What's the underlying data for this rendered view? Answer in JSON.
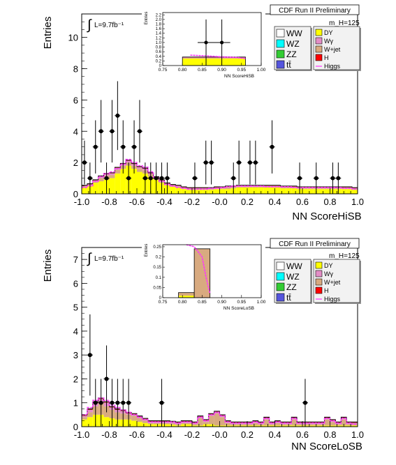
{
  "chart_data": [
    {
      "type": "bar",
      "title": "CDF Run II Preliminary",
      "mass_label": "m_H=125",
      "lumi_label": "L=9.7fb⁻¹",
      "xlabel": "NN ScoreHiSB",
      "ylabel": "Entries",
      "xlim": [
        -1.0,
        1.0
      ],
      "ylim": [
        0,
        11.5
      ],
      "xticks": [
        "-1.0",
        "-0.8",
        "-0.6",
        "-0.4",
        "-0.2",
        "-0.0",
        "0.2",
        "0.4",
        "0.6",
        "0.8",
        "1.0"
      ],
      "yticks": [
        "0",
        "2",
        "4",
        "6",
        "8",
        "10"
      ],
      "legend_left": [
        "WW",
        "WZ",
        "ZZ",
        "tt̄"
      ],
      "legend_right": [
        "DY",
        "Wγ",
        "W+jet",
        "H",
        "Higgs"
      ],
      "bin_edges_from": -1.0,
      "bin_width": 0.04,
      "series": [
        {
          "name": "DY",
          "values": [
            0.4,
            0.5,
            0.7,
            0.8,
            0.9,
            1.0,
            1.3,
            1.6,
            1.8,
            1.6,
            1.4,
            1.3,
            1.1,
            0.9,
            0.7,
            0.55,
            0.45,
            0.4,
            0.3,
            0.25,
            0.25,
            0.25,
            0.25,
            0.25,
            0.3,
            0.3,
            0.3,
            0.35,
            0.4,
            0.4,
            0.4,
            0.4,
            0.4,
            0.4,
            0.4,
            0.4,
            0.35,
            0.35,
            0.35,
            0.3,
            0.3,
            0.3,
            0.3,
            0.3,
            0.3,
            0.3,
            0.3,
            0.3,
            0.3,
            0.25
          ]
        },
        {
          "name": "W+jet",
          "values": [
            0.05,
            0.05,
            0.1,
            0.2,
            0.25,
            0.2,
            0.25,
            0.2,
            0.2,
            0.2,
            0.2,
            0.2,
            0.15,
            0.1,
            0.1,
            0.05,
            0.05,
            0.05,
            0.05,
            0.05,
            0.05,
            0.05,
            0.05,
            0.05,
            0.05,
            0.05,
            0.1,
            0.05,
            0.05,
            0.05,
            0.05,
            0.05,
            0.05,
            0.05,
            0.05,
            0.05,
            0.05,
            0.05,
            0.05,
            0.05,
            0.05,
            0.05,
            0.05,
            0.05,
            0.05,
            0.05,
            0.05,
            0.05,
            0.05,
            0.05
          ]
        },
        {
          "name": "Wγ",
          "values": [
            0.05,
            0.05,
            0.05,
            0.1,
            0.1,
            0.1,
            0.1,
            0.1,
            0.1,
            0.1,
            0.1,
            0.1,
            0.05,
            0.05,
            0.05,
            0.05,
            0.05,
            0.05,
            0.05,
            0.05,
            0.05,
            0.05,
            0.05,
            0.05,
            0.05,
            0.05,
            0.05,
            0.05,
            0.05,
            0.05,
            0.05,
            0.05,
            0.05,
            0.05,
            0.05,
            0.05,
            0.05,
            0.05,
            0.05,
            0.05,
            0.05,
            0.05,
            0.05,
            0.05,
            0.05,
            0.05,
            0.05,
            0.05,
            0.05,
            0.05
          ]
        },
        {
          "name": "WW",
          "values": [
            0.05,
            0.05,
            0.05,
            0.05,
            0.05,
            0.05,
            0.05,
            0.05,
            0.05,
            0.05,
            0.05,
            0.05,
            0.05,
            0.05,
            0.05,
            0.05,
            0.05,
            0.05,
            0.05,
            0.05,
            0.05,
            0.05,
            0.05,
            0.05,
            0.05,
            0.05,
            0.05,
            0.05,
            0.05,
            0.05,
            0.05,
            0.05,
            0.05,
            0.05,
            0.05,
            0.05,
            0.05,
            0.05,
            0.05,
            0.05,
            0.05,
            0.05,
            0.05,
            0.05,
            0.05,
            0.05,
            0.05,
            0.05,
            0.05,
            0.05
          ]
        }
      ],
      "points": [
        {
          "x": -0.98,
          "y": 2,
          "err": 1.4
        },
        {
          "x": -0.94,
          "y": 1,
          "err": 1.0
        },
        {
          "x": -0.9,
          "y": 3,
          "err": 1.7
        },
        {
          "x": -0.86,
          "y": 4,
          "err": 2.0
        },
        {
          "x": -0.82,
          "y": 1,
          "err": 1.0
        },
        {
          "x": -0.78,
          "y": 4,
          "err": 2.0
        },
        {
          "x": -0.74,
          "y": 5,
          "err": 2.2
        },
        {
          "x": -0.7,
          "y": 3,
          "err": 1.7
        },
        {
          "x": -0.66,
          "y": 1,
          "err": 1.0
        },
        {
          "x": -0.62,
          "y": 3,
          "err": 1.7
        },
        {
          "x": -0.58,
          "y": 4,
          "err": 2.0
        },
        {
          "x": -0.54,
          "y": 1,
          "err": 1.0
        },
        {
          "x": -0.5,
          "y": 1,
          "err": 1.0
        },
        {
          "x": -0.46,
          "y": 1,
          "err": 1.0
        },
        {
          "x": -0.42,
          "y": 1,
          "err": 1.0
        },
        {
          "x": -0.38,
          "y": 1,
          "err": 1.0
        },
        {
          "x": -0.18,
          "y": 1,
          "err": 1.0
        },
        {
          "x": -0.1,
          "y": 2,
          "err": 1.4
        },
        {
          "x": -0.06,
          "y": 2,
          "err": 1.4
        },
        {
          "x": 0.1,
          "y": 1,
          "err": 1.0
        },
        {
          "x": 0.14,
          "y": 2,
          "err": 1.4
        },
        {
          "x": 0.22,
          "y": 2,
          "err": 1.4
        },
        {
          "x": 0.26,
          "y": 2,
          "err": 1.4
        },
        {
          "x": 0.38,
          "y": 3,
          "err": 1.7
        },
        {
          "x": 0.58,
          "y": 1,
          "err": 1.0
        },
        {
          "x": 0.7,
          "y": 1,
          "err": 1.0
        },
        {
          "x": 0.82,
          "y": 1,
          "err": 1.0
        },
        {
          "x": 0.86,
          "y": 1,
          "err": 1.0
        }
      ],
      "higgs": [
        0.4,
        0.5,
        0.8,
        1.1,
        1.3,
        1.4,
        1.6,
        1.9,
        2.2,
        2.0,
        1.8,
        1.7,
        1.4,
        1.0,
        0.8,
        0.6,
        0.5,
        0.4,
        0.35,
        0.3,
        0.3,
        0.3,
        0.3,
        0.35,
        0.35,
        0.4,
        0.45,
        0.5,
        0.5,
        0.5,
        0.5,
        0.5,
        0.5,
        0.45,
        0.45,
        0.45,
        0.45,
        0.45,
        0.4,
        0.4,
        0.4,
        0.4,
        0.4,
        0.4,
        0.4,
        0.4,
        0.4,
        0.35,
        0.35,
        0.3
      ],
      "inset": {
        "xlabel": "NN ScoreHiSB",
        "ylabel": "Entries",
        "xlim": [
          0.75,
          1.0
        ],
        "ylim": [
          0,
          2.3
        ],
        "xticks": [
          "0.75",
          "0.80",
          "0.85",
          "0.90",
          "0.95",
          "1.00"
        ],
        "yticks": [
          "0",
          "0.2",
          "0.4",
          "0.6",
          "0.8",
          "1.0",
          "1.2",
          "1.4",
          "1.6",
          "1.8",
          "2.0",
          "2.2"
        ],
        "bins": [
          {
            "x0": 0.8,
            "x1": 0.96,
            "dy": 0.3,
            "wjet": 0.03,
            "wg": 0.02,
            "ww": 0.02
          }
        ],
        "points": [
          {
            "x": 0.86,
            "y": 1,
            "err": 1.0
          },
          {
            "x": 0.9,
            "y": 1,
            "err": 1.0
          }
        ],
        "higgs": [
          [
            0.82,
            0.45
          ],
          [
            0.86,
            0.42
          ],
          [
            0.9,
            0.38
          ],
          [
            0.94,
            0.35
          ],
          [
            0.96,
            0.3
          ]
        ]
      }
    },
    {
      "type": "bar",
      "title": "CDF Run II Preliminary",
      "mass_label": "m_H=125",
      "lumi_label": "L=9.7fb⁻¹",
      "xlabel": "NN ScoreLoSB",
      "ylabel": "Entries",
      "xlim": [
        -1.0,
        1.0
      ],
      "ylim": [
        0,
        7.5
      ],
      "xticks": [
        "-1.0",
        "-0.8",
        "-0.6",
        "-0.4",
        "-0.2",
        "-0.0",
        "0.2",
        "0.4",
        "0.6",
        "0.8",
        "1.0"
      ],
      "yticks": [
        "0",
        "1",
        "2",
        "3",
        "4",
        "5",
        "6",
        "7"
      ],
      "legend_left": [
        "WW",
        "WZ",
        "ZZ",
        "tt̄"
      ],
      "legend_right": [
        "DY",
        "Wγ",
        "W+jet",
        "H",
        "Higgs"
      ],
      "bin_edges_from": -1.0,
      "bin_width": 0.04,
      "series": [
        {
          "name": "DY",
          "values": [
            0.3,
            0.4,
            0.5,
            0.5,
            0.4,
            0.35,
            0.3,
            0.3,
            0.3,
            0.25,
            0.2,
            0.15,
            0.1,
            0.1,
            0.1,
            0.1,
            0.08,
            0.05,
            0.1,
            0.1,
            0.05,
            0.05,
            0.1,
            0.1,
            0.05,
            0.05,
            0.05,
            0.05,
            0.05,
            0.05,
            0.05,
            0.05,
            0.05,
            0.05,
            0.05,
            0.05,
            0.05,
            0.05,
            0.05,
            0.05,
            0.05,
            0.05,
            0.05,
            0.05,
            0.05,
            0.05,
            0.05,
            0.05,
            0.05,
            0.05
          ]
        },
        {
          "name": "W+jet",
          "values": [
            0.1,
            0.2,
            0.35,
            0.5,
            0.45,
            0.35,
            0.3,
            0.25,
            0.2,
            0.2,
            0.15,
            0.1,
            0.05,
            0.05,
            0.05,
            0.05,
            0.05,
            0.05,
            0.05,
            0.05,
            0.05,
            0.3,
            0.1,
            0.35,
            0.5,
            0.35,
            0.1,
            0.05,
            0.05,
            0.05,
            0.05,
            0.1,
            0.05,
            0.25,
            0.05,
            0.1,
            0.05,
            0.05,
            0.25,
            0.05,
            0.05,
            0.05,
            0.05,
            0.05,
            0.25,
            0.15,
            0.05,
            0.25,
            0.05,
            0.05
          ]
        },
        {
          "name": "Wγ",
          "values": [
            0.05,
            0.1,
            0.15,
            0.15,
            0.15,
            0.1,
            0.1,
            0.1,
            0.05,
            0.05,
            0.05,
            0.05,
            0.05,
            0.05,
            0.05,
            0.05,
            0.05,
            0.05,
            0.05,
            0.05,
            0.05,
            0.05,
            0.05,
            0.05,
            0.05,
            0.05,
            0.05,
            0.05,
            0.05,
            0.05,
            0.05,
            0.05,
            0.05,
            0.05,
            0.05,
            0.05,
            0.05,
            0.05,
            0.05,
            0.05,
            0.05,
            0.05,
            0.05,
            0.05,
            0.05,
            0.05,
            0.05,
            0.05,
            0.05,
            0.05
          ]
        },
        {
          "name": "WW",
          "values": [
            0.05,
            0.05,
            0.05,
            0.05,
            0.05,
            0.05,
            0.05,
            0.05,
            0.05,
            0.05,
            0.05,
            0.05,
            0.05,
            0.05,
            0.05,
            0.05,
            0.05,
            0.05,
            0.05,
            0.05,
            0.05,
            0.05,
            0.05,
            0.05,
            0.05,
            0.05,
            0.05,
            0.05,
            0.05,
            0.05,
            0.05,
            0.05,
            0.05,
            0.05,
            0.05,
            0.05,
            0.05,
            0.05,
            0.05,
            0.05,
            0.05,
            0.05,
            0.05,
            0.05,
            0.05,
            0.05,
            0.05,
            0.05,
            0.05,
            0.05
          ]
        }
      ],
      "points": [
        {
          "x": -0.94,
          "y": 3,
          "err": 1.7
        },
        {
          "x": -0.9,
          "y": 1,
          "err": 1.0
        },
        {
          "x": -0.86,
          "y": 1,
          "err": 1.0
        },
        {
          "x": -0.82,
          "y": 2,
          "err": 1.4
        },
        {
          "x": -0.78,
          "y": 1,
          "err": 1.0
        },
        {
          "x": -0.74,
          "y": 1,
          "err": 1.0
        },
        {
          "x": -0.7,
          "y": 1,
          "err": 1.0
        },
        {
          "x": -0.66,
          "y": 1,
          "err": 1.0
        },
        {
          "x": -0.42,
          "y": 1,
          "err": 1.0
        },
        {
          "x": 0.62,
          "y": 1,
          "err": 1.0
        }
      ],
      "higgs": [
        0.5,
        0.8,
        1.1,
        1.2,
        1.1,
        0.9,
        0.8,
        0.7,
        0.6,
        0.5,
        0.4,
        0.3,
        0.2,
        0.2,
        0.2,
        0.2,
        0.2,
        0.15,
        0.2,
        0.2,
        0.15,
        0.4,
        0.25,
        0.5,
        0.6,
        0.45,
        0.2,
        0.15,
        0.15,
        0.15,
        0.15,
        0.2,
        0.15,
        0.35,
        0.15,
        0.2,
        0.15,
        0.15,
        0.35,
        0.15,
        0.15,
        0.15,
        0.15,
        0.15,
        0.35,
        0.25,
        0.15,
        0.35,
        0.15,
        0.1
      ],
      "inset": {
        "xlabel": "NN ScoreLoSB",
        "ylabel": "Entries",
        "xlim": [
          0.75,
          1.0
        ],
        "ylim": [
          0,
          0.26
        ],
        "xticks": [
          "0.75",
          "0.80",
          "0.85",
          "0.90",
          "0.95",
          "1.00"
        ],
        "yticks": [
          "0",
          "0.05",
          "0.1",
          "0.15",
          "0.2",
          "0.25"
        ],
        "bins": [
          {
            "x0": 0.79,
            "x1": 0.83,
            "dy": 0.01,
            "wjet": 0.015,
            "wg": 0.0,
            "ww": 0.0
          },
          {
            "x0": 0.83,
            "x1": 0.87,
            "dy": 0.0,
            "wjet": 0.24,
            "wg": 0.0,
            "ww": 0.0
          }
        ],
        "points": [],
        "higgs": [
          [
            0.81,
            0.26
          ],
          [
            0.83,
            0.25
          ],
          [
            0.85,
            0.2
          ],
          [
            0.86,
            0.1
          ],
          [
            0.87,
            0.02
          ]
        ]
      }
    }
  ],
  "colors": {
    "DY": "#ffff00",
    "W+jet": "#d8aa80",
    "Wγ": "#e38ec6",
    "WW": "#993333",
    "WZ": "#00ffff",
    "ZZ": "#33cc33",
    "tt̄": "#5555dd",
    "H": "#ff0000",
    "Higgs": "#ff33ff"
  }
}
